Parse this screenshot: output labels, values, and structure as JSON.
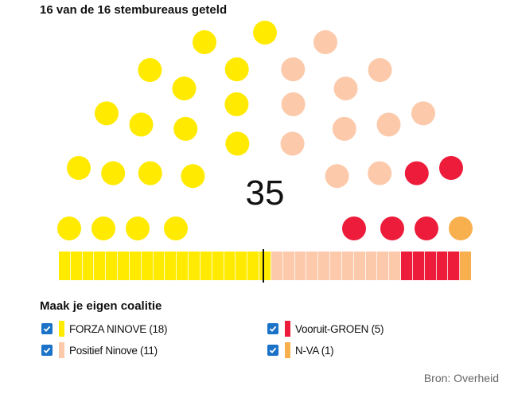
{
  "header": {
    "counted": "16 van de 16 stembureaus geteld"
  },
  "chart_data": {
    "type": "hemicycle",
    "total_seats": 35,
    "center_label": "35",
    "series": [
      {
        "name": "FORZA NINOVE",
        "seats": 18,
        "color": "#ffea00"
      },
      {
        "name": "Positief Ninove",
        "seats": 11,
        "color": "#fccaab"
      },
      {
        "name": "Vooruit-GROEN",
        "seats": 5,
        "color": "#ec1c3a"
      },
      {
        "name": "N-VA",
        "seats": 1,
        "color": "#f8b04f"
      }
    ]
  },
  "coalition": {
    "title": "Maak je eigen coalitie",
    "items": [
      {
        "label": "FORZA NINOVE (18)",
        "checked": true,
        "color": "#ffea00"
      },
      {
        "label": "Vooruit-GROEN (5)",
        "checked": true,
        "color": "#ec1c3a"
      },
      {
        "label": "Positief Ninove (11)",
        "checked": true,
        "color": "#fccaab"
      },
      {
        "label": "N-VA (1)",
        "checked": true,
        "color": "#f8b04f"
      }
    ]
  },
  "footer": {
    "source": "Bron: Overheid"
  }
}
